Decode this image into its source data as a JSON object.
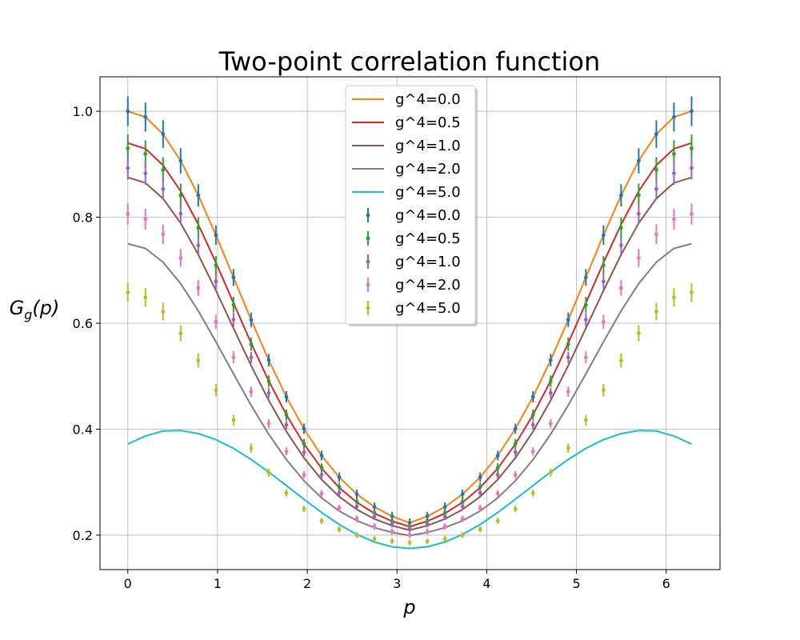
{
  "chart_data": {
    "type": "line",
    "title": "Two-point correlation function",
    "xlabel": "p",
    "ylabel": "G_g(p)",
    "ylabel_main": "G",
    "ylabel_sub": "g",
    "ylabel_arg": "(p)",
    "xlim": [
      -0.31,
      6.6
    ],
    "ylim": [
      0.135,
      1.065
    ],
    "xticks": [
      0,
      1,
      2,
      3,
      4,
      5,
      6
    ],
    "yticks": [
      0.2,
      0.4,
      0.6,
      0.8,
      1.0
    ],
    "xtick_labels": [
      "0",
      "1",
      "2",
      "3",
      "4",
      "5",
      "6"
    ],
    "ytick_labels": [
      "0.2",
      "0.4",
      "0.6",
      "0.8",
      "1.0"
    ],
    "grid": true,
    "legend_position": "top-center",
    "line_series": [
      {
        "name": "g^4=0.0",
        "color": "#ff7f0e",
        "amplitude": 1.0,
        "base": 0.2,
        "width": 1.67
      },
      {
        "name": "g^4=0.5",
        "color": "#d62728",
        "amplitude": 0.94,
        "base": 0.198,
        "width": 1.63
      },
      {
        "name": "g^4=1.0",
        "color": "#8c564b",
        "amplitude": 0.875,
        "base": 0.195,
        "width": 1.6
      },
      {
        "name": "g^4=2.0",
        "color": "#7f7f7f",
        "amplitude": 0.75,
        "base": 0.19,
        "width": 1.55
      },
      {
        "name": "g^4=5.0",
        "color": "#17becf",
        "amplitude": 0.372,
        "peak": 0.398,
        "base": 0.175
      }
    ],
    "error_series": [
      {
        "name": "g^4=0.0",
        "color": "#1f77b4",
        "amplitude": 1.0,
        "base": 0.2,
        "width": 1.67,
        "err": 0.028
      },
      {
        "name": "g^4=0.5",
        "color": "#2ca02c",
        "amplitude": 0.93,
        "base": 0.198,
        "width": 1.64,
        "err": 0.026
      },
      {
        "name": "g^4=1.0",
        "color": "#9467bd",
        "amplitude": 0.893,
        "base": 0.196,
        "width": 1.62,
        "err": 0.022
      },
      {
        "name": "g^4=2.0",
        "color": "#e377c2",
        "amplitude": 0.806,
        "base": 0.19,
        "width": 1.55,
        "err": 0.02
      },
      {
        "name": "g^4=5.0",
        "color": "#bcbd22",
        "amplitude": 0.658,
        "base": 0.183,
        "width": 1.4,
        "err": 0.018
      }
    ]
  }
}
